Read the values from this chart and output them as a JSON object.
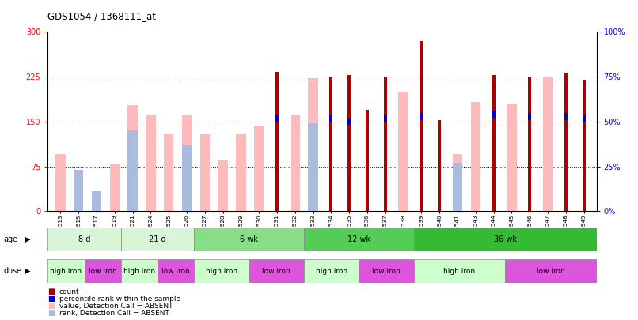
{
  "title": "GDS1054 / 1368111_at",
  "samples": [
    "GSM33513",
    "GSM33515",
    "GSM33517",
    "GSM33519",
    "GSM33521",
    "GSM33524",
    "GSM33525",
    "GSM33526",
    "GSM33527",
    "GSM33528",
    "GSM33529",
    "GSM33530",
    "GSM33531",
    "GSM33532",
    "GSM33533",
    "GSM33534",
    "GSM33535",
    "GSM33536",
    "GSM33537",
    "GSM33538",
    "GSM33539",
    "GSM33540",
    "GSM33541",
    "GSM33543",
    "GSM33544",
    "GSM33545",
    "GSM33546",
    "GSM33547",
    "GSM33548",
    "GSM33549"
  ],
  "count": [
    null,
    null,
    null,
    null,
    null,
    null,
    null,
    null,
    null,
    null,
    null,
    null,
    233,
    null,
    null,
    224,
    228,
    170,
    224,
    null,
    285,
    152,
    null,
    null,
    228,
    null,
    225,
    null,
    232,
    220
  ],
  "rank_present": [
    null,
    null,
    null,
    null,
    null,
    null,
    null,
    null,
    null,
    null,
    null,
    null,
    52,
    null,
    null,
    52,
    50,
    null,
    52,
    null,
    53,
    null,
    null,
    null,
    54,
    null,
    53,
    null,
    53,
    52
  ],
  "value_absent": [
    95,
    null,
    null,
    80,
    177,
    162,
    130,
    160,
    130,
    85,
    130,
    143,
    null,
    162,
    222,
    null,
    null,
    null,
    null,
    200,
    null,
    null,
    95,
    183,
    null,
    180,
    null,
    225,
    null,
    null
  ],
  "rank_absent": [
    null,
    23,
    11,
    null,
    45,
    null,
    null,
    37,
    null,
    null,
    null,
    null,
    null,
    null,
    49,
    null,
    null,
    null,
    null,
    null,
    null,
    null,
    27,
    null,
    null,
    null,
    null,
    null,
    null,
    null
  ],
  "ages": [
    {
      "label": "8 d",
      "start": 0,
      "end": 4,
      "light": true
    },
    {
      "label": "21 d",
      "start": 4,
      "end": 8,
      "light": true
    },
    {
      "label": "6 wk",
      "start": 8,
      "end": 14,
      "light": false
    },
    {
      "label": "12 wk",
      "start": 14,
      "end": 20,
      "light": false
    },
    {
      "label": "36 wk",
      "start": 20,
      "end": 30,
      "light": false
    }
  ],
  "doses": [
    {
      "label": "high iron",
      "start": 0,
      "end": 2
    },
    {
      "label": "low iron",
      "start": 2,
      "end": 4
    },
    {
      "label": "high iron",
      "start": 4,
      "end": 6
    },
    {
      "label": "low iron",
      "start": 6,
      "end": 8
    },
    {
      "label": "high iron",
      "start": 8,
      "end": 11
    },
    {
      "label": "low iron",
      "start": 11,
      "end": 14
    },
    {
      "label": "high iron",
      "start": 14,
      "end": 17
    },
    {
      "label": "low iron",
      "start": 17,
      "end": 20
    },
    {
      "label": "high iron",
      "start": 20,
      "end": 25
    },
    {
      "label": "low iron",
      "start": 25,
      "end": 30
    }
  ],
  "ylim": [
    0,
    300
  ],
  "y2lim": [
    0,
    100
  ],
  "yticks_left": [
    0,
    75,
    150,
    225,
    300
  ],
  "yticks_right": [
    0,
    25,
    50,
    75,
    100
  ],
  "color_count": "#aa0000",
  "color_rank_present": "#0000cc",
  "color_value_absent": "#ffbbbb",
  "color_rank_absent": "#aabbdd",
  "color_age_light": "#ccffcc",
  "color_age_mid": "#88dd88",
  "color_age_dark": "#55cc55",
  "color_high_iron": "#ccffcc",
  "color_low_iron": "#dd55dd"
}
